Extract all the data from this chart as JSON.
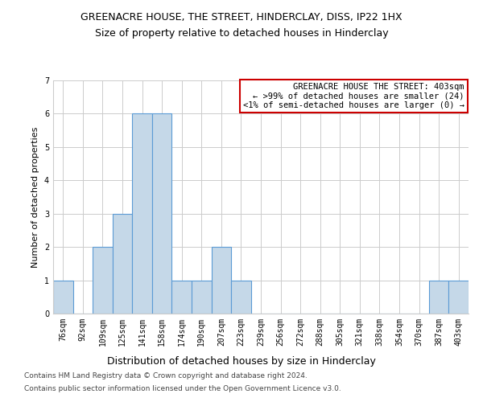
{
  "title1": "GREENACRE HOUSE, THE STREET, HINDERCLAY, DISS, IP22 1HX",
  "title2": "Size of property relative to detached houses in Hinderclay",
  "xlabel": "Distribution of detached houses by size in Hinderclay",
  "ylabel": "Number of detached properties",
  "categories": [
    "76sqm",
    "92sqm",
    "109sqm",
    "125sqm",
    "141sqm",
    "158sqm",
    "174sqm",
    "190sqm",
    "207sqm",
    "223sqm",
    "239sqm",
    "256sqm",
    "272sqm",
    "288sqm",
    "305sqm",
    "321sqm",
    "338sqm",
    "354sqm",
    "370sqm",
    "387sqm",
    "403sqm"
  ],
  "values": [
    1,
    0,
    2,
    3,
    6,
    6,
    1,
    1,
    2,
    1,
    0,
    0,
    0,
    0,
    0,
    0,
    0,
    0,
    0,
    1,
    1
  ],
  "bar_color": "#c5d8e8",
  "bar_edge_color": "#5b9bd5",
  "ylim": [
    0,
    7
  ],
  "yticks": [
    0,
    1,
    2,
    3,
    4,
    5,
    6,
    7
  ],
  "grid_color": "#cccccc",
  "background_color": "#ffffff",
  "annotation_title": "GREENACRE HOUSE THE STREET: 403sqm",
  "annotation_line1": "← >99% of detached houses are smaller (24)",
  "annotation_line2": "<1% of semi-detached houses are larger (0) →",
  "annotation_box_color": "#ffffff",
  "annotation_box_edge_color": "#cc0000",
  "footer1": "Contains HM Land Registry data © Crown copyright and database right 2024.",
  "footer2": "Contains public sector information licensed under the Open Government Licence v3.0.",
  "title1_fontsize": 9,
  "title2_fontsize": 9,
  "xlabel_fontsize": 9,
  "ylabel_fontsize": 8,
  "tick_fontsize": 7,
  "annotation_fontsize": 7.5,
  "footer_fontsize": 6.5
}
